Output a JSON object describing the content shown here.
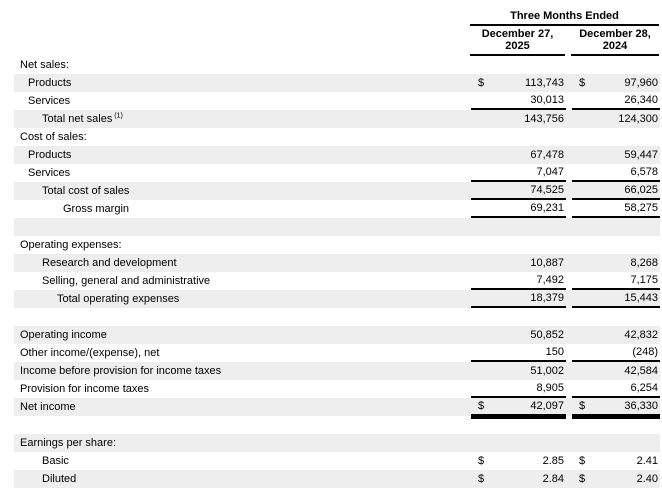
{
  "colors": {
    "row_shade": "#eeeeee",
    "rule": "#000000",
    "text": "#000000",
    "background": "#ffffff"
  },
  "table": {
    "period_header": "Three Months Ended",
    "columns": [
      {
        "date_line1": "December 27,",
        "date_line2": "2025"
      },
      {
        "date_line1": "December 28,",
        "date_line2": "2024"
      }
    ],
    "rows": [
      {
        "label": "Net sales:",
        "indent": 0,
        "shaded": false
      },
      {
        "label": "Products",
        "indent": 1,
        "shaded": true,
        "dollar": true,
        "values": [
          "113,743",
          "97,960"
        ]
      },
      {
        "label": "Services",
        "indent": 1,
        "shaded": false,
        "dollar": false,
        "values": [
          "30,013",
          "26,340"
        ],
        "rule": "single"
      },
      {
        "label": "Total net sales",
        "footnote": "(1)",
        "indent": 2,
        "shaded": true,
        "dollar": false,
        "values": [
          "143,756",
          "124,300"
        ]
      },
      {
        "label": "Cost of sales:",
        "indent": 0,
        "shaded": false
      },
      {
        "label": "Products",
        "indent": 1,
        "shaded": true,
        "dollar": false,
        "values": [
          "67,478",
          "59,447"
        ]
      },
      {
        "label": "Services",
        "indent": 1,
        "shaded": false,
        "dollar": false,
        "values": [
          "7,047",
          "6,578"
        ],
        "rule": "single"
      },
      {
        "label": "Total cost of sales",
        "indent": 2,
        "shaded": true,
        "dollar": false,
        "values": [
          "74,525",
          "66,025"
        ],
        "rule": "single"
      },
      {
        "label": "Gross margin",
        "indent": 4,
        "shaded": false,
        "dollar": false,
        "values": [
          "69,231",
          "58,275"
        ],
        "rule": "single"
      },
      {
        "label": "",
        "blank": true,
        "shaded": true
      },
      {
        "label": "Operating expenses:",
        "indent": 0,
        "shaded": false
      },
      {
        "label": "Research and development",
        "indent": 2,
        "shaded": true,
        "dollar": false,
        "values": [
          "10,887",
          "8,268"
        ]
      },
      {
        "label": "Selling, general and administrative",
        "indent": 2,
        "shaded": false,
        "dollar": false,
        "values": [
          "7,492",
          "7,175"
        ],
        "rule": "single"
      },
      {
        "label": "Total operating expenses",
        "indent": 3,
        "shaded": true,
        "dollar": false,
        "values": [
          "18,379",
          "15,443"
        ],
        "rule": "single"
      },
      {
        "label": "",
        "blank": true,
        "shaded": false
      },
      {
        "label": "Operating income",
        "indent": 0,
        "shaded": true,
        "dollar": false,
        "values": [
          "50,852",
          "42,832"
        ]
      },
      {
        "label": "Other income/(expense), net",
        "indent": 0,
        "shaded": false,
        "dollar": false,
        "values": [
          "150",
          "(248)"
        ],
        "rule": "single"
      },
      {
        "label": "Income before provision for income taxes",
        "indent": 0,
        "shaded": true,
        "dollar": false,
        "values": [
          "51,002",
          "42,584"
        ]
      },
      {
        "label": "Provision for income taxes",
        "indent": 0,
        "shaded": false,
        "dollar": false,
        "values": [
          "8,905",
          "6,254"
        ],
        "rule": "single"
      },
      {
        "label": "Net income",
        "indent": 0,
        "shaded": true,
        "dollar": true,
        "values": [
          "42,097",
          "36,330"
        ],
        "rule": "double"
      },
      {
        "label": "",
        "blank": true,
        "shaded": false
      },
      {
        "label": "Earnings per share:",
        "indent": 0,
        "shaded": true
      },
      {
        "label": "Basic",
        "indent": 2,
        "shaded": false,
        "dollar": true,
        "values": [
          "2.85",
          "2.41"
        ]
      },
      {
        "label": "Diluted",
        "indent": 2,
        "shaded": true,
        "dollar": true,
        "values": [
          "2.84",
          "2.40"
        ]
      }
    ]
  }
}
